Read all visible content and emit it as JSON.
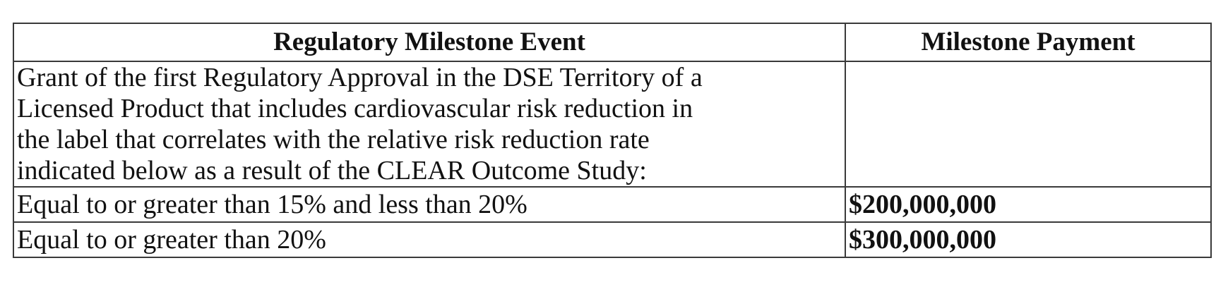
{
  "table": {
    "headers": {
      "event": "Regulatory Milestone Event",
      "payment": "Milestone Payment"
    },
    "intro": {
      "lines": [
        "Grant of the first Regulatory Approval in the DSE Territory of a",
        "Licensed Product that includes cardiovascular risk reduction in",
        "the label that correlates with the relative risk reduction rate",
        "indicated below as a result of the CLEAR Outcome Study:"
      ],
      "payment": ""
    },
    "rows": [
      {
        "event": "Equal to or greater than 15% and less than 20%",
        "payment": "$200,000,000"
      },
      {
        "event": "Equal to or greater than 20%",
        "payment": "$300,000,000"
      }
    ]
  }
}
